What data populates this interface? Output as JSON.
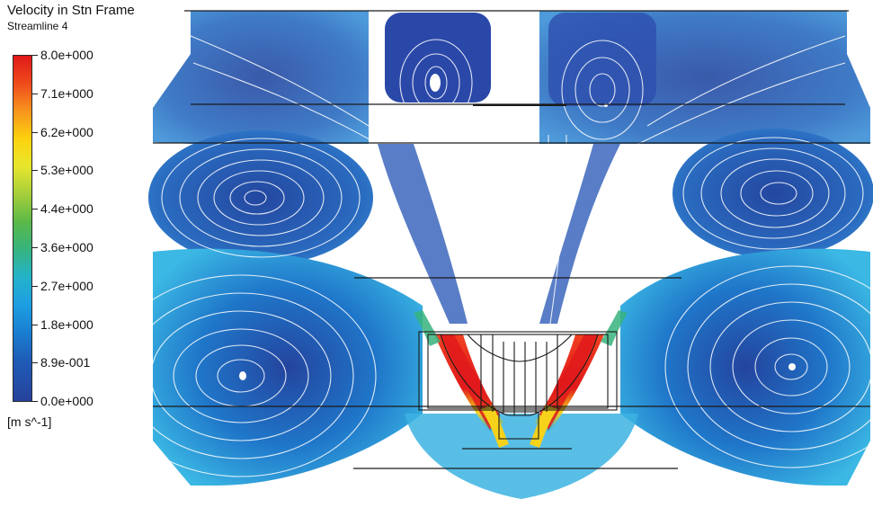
{
  "legend": {
    "title": "Velocity in Stn Frame",
    "subtitle": "Streamline 4",
    "units": "[m s^-1]",
    "ticks": [
      "8.0e+000",
      "7.1e+000",
      "6.2e+000",
      "5.3e+000",
      "4.4e+000",
      "3.6e+000",
      "2.7e+000",
      "1.8e+000",
      "8.9e-001",
      "0.0e+000"
    ],
    "color_map": [
      "#26429c",
      "#1a7fd1",
      "#24b3c9",
      "#36b37e",
      "#a6cf3b",
      "#fdd20e",
      "#f7941d",
      "#e0191b"
    ]
  },
  "colors": {
    "low_speed": "#26429c",
    "mid_low_speed": "#2aa6e0",
    "high_speed": "#e0191b",
    "background": "#ffffff",
    "outline": "#1a1a1a"
  }
}
